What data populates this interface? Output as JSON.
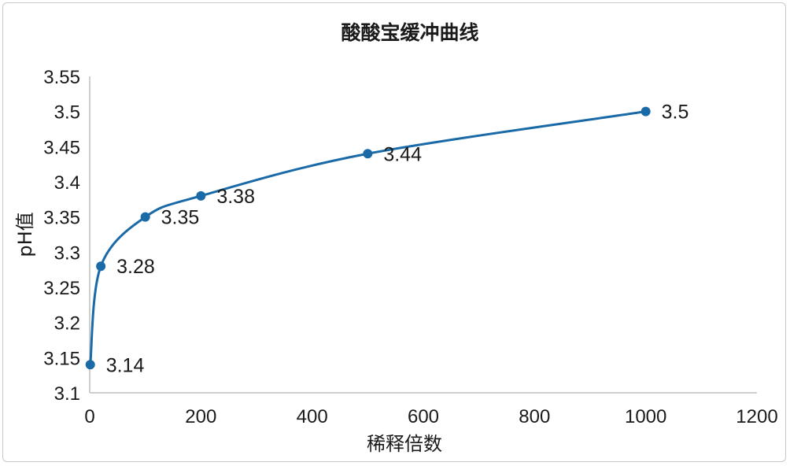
{
  "chart_data": {
    "type": "scatter",
    "title": "酸酸宝缓冲曲线",
    "xlabel": "稀释倍数",
    "ylabel": "pH值",
    "xlim": [
      0,
      1200
    ],
    "ylim": [
      3.1,
      3.55
    ],
    "x_ticks": [
      "0",
      "200",
      "400",
      "600",
      "800",
      "1000",
      "1200"
    ],
    "y_ticks": [
      "3.1",
      "3.15",
      "3.2",
      "3.25",
      "3.3",
      "3.35",
      "3.4",
      "3.45",
      "3.5",
      "3.55"
    ],
    "grid": false,
    "legend": "none",
    "smooth": true,
    "color": "#1a6aa8",
    "series": [
      {
        "x": [
          1,
          20,
          100,
          200,
          500,
          1000
        ],
        "y": [
          3.14,
          3.28,
          3.35,
          3.38,
          3.44,
          3.5
        ],
        "labels": [
          "3.14",
          "3.28",
          "3.35",
          "3.38",
          "3.44",
          "3.5"
        ]
      }
    ]
  }
}
